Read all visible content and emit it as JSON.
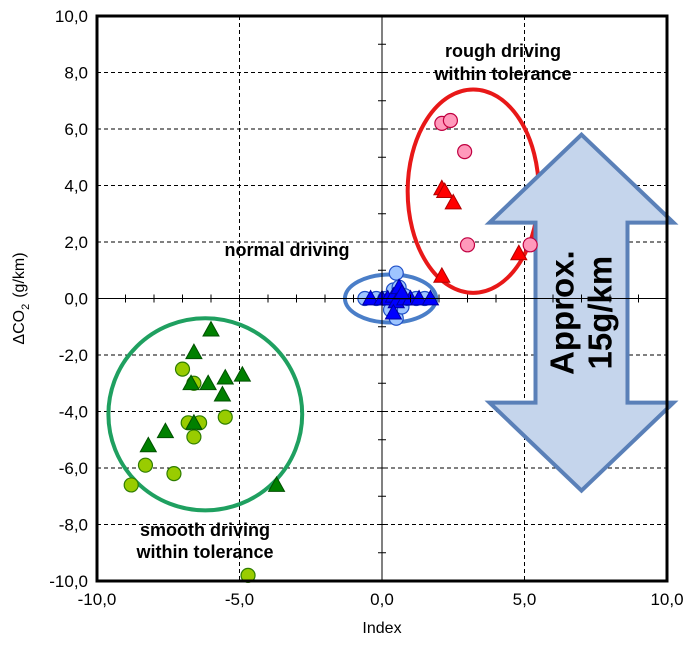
{
  "chart_data": {
    "type": "scatter",
    "title": "",
    "xlabel": "Index",
    "ylabel_main": "ΔCO",
    "ylabel_sub": "2",
    "ylabel_unit": "(g/km)",
    "xlim": [
      -10,
      10
    ],
    "ylim": [
      -10,
      10
    ],
    "x_ticks": [
      "-10,0",
      "-5,0",
      "0,0",
      "5,0",
      "10,0"
    ],
    "y_ticks": [
      "10,0",
      "8,0",
      "6,0",
      "4,0",
      "2,0",
      "0,0",
      "-2,0",
      "-4,0",
      "-6,0",
      "-8,0",
      "-10,0"
    ],
    "grid": true,
    "series": [
      {
        "group": "smooth driving",
        "marker": "circle",
        "fill": "#99cc00",
        "stroke": "#2e7d00",
        "points": [
          [
            -8.8,
            -6.6
          ],
          [
            -8.3,
            -5.9
          ],
          [
            -7.3,
            -6.2
          ],
          [
            -7.0,
            -2.5
          ],
          [
            -6.6,
            -3.0
          ],
          [
            -6.8,
            -4.4
          ],
          [
            -6.6,
            -4.9
          ],
          [
            -6.4,
            -4.4
          ],
          [
            -5.5,
            -4.2
          ],
          [
            -4.7,
            -9.8
          ]
        ]
      },
      {
        "group": "smooth driving",
        "marker": "triangle",
        "fill": "#008000",
        "stroke": "#005000",
        "points": [
          [
            -8.2,
            -5.2
          ],
          [
            -7.6,
            -4.7
          ],
          [
            -6.7,
            -3.0
          ],
          [
            -6.6,
            -1.9
          ],
          [
            -6.0,
            -1.1
          ],
          [
            -6.1,
            -3.0
          ],
          [
            -5.5,
            -2.8
          ],
          [
            -5.6,
            -3.4
          ],
          [
            -4.9,
            -2.7
          ],
          [
            -6.6,
            -4.4
          ],
          [
            -3.7,
            -6.6
          ]
        ]
      },
      {
        "group": "normal driving",
        "marker": "circle",
        "fill": "#9ec5ff",
        "stroke": "#2050c8",
        "points": [
          [
            -0.6,
            0.0
          ],
          [
            -0.2,
            0.0
          ],
          [
            0.1,
            0.0
          ],
          [
            0.3,
            0.0
          ],
          [
            0.5,
            0.9
          ],
          [
            0.4,
            0.3
          ],
          [
            0.6,
            0.4
          ],
          [
            0.5,
            -0.7
          ],
          [
            0.7,
            -0.3
          ],
          [
            0.9,
            0.0
          ],
          [
            1.2,
            0.0
          ],
          [
            1.5,
            0.0
          ],
          [
            0.8,
            0.1
          ],
          [
            0.3,
            -0.4
          ]
        ]
      },
      {
        "group": "normal driving",
        "marker": "triangle",
        "fill": "#0000ff",
        "stroke": "#0000a0",
        "points": [
          [
            -0.4,
            0.0
          ],
          [
            0.0,
            0.0
          ],
          [
            0.2,
            0.0
          ],
          [
            0.4,
            0.1
          ],
          [
            0.6,
            0.4
          ],
          [
            0.5,
            -0.1
          ],
          [
            0.8,
            0.0
          ],
          [
            1.0,
            0.0
          ],
          [
            1.3,
            0.0
          ],
          [
            1.7,
            0.0
          ],
          [
            0.4,
            -0.5
          ],
          [
            0.7,
            0.2
          ]
        ]
      },
      {
        "group": "rough driving",
        "marker": "circle",
        "fill": "#ff99bb",
        "stroke": "#c00040",
        "points": [
          [
            2.1,
            6.2
          ],
          [
            2.4,
            6.3
          ],
          [
            2.9,
            5.2
          ],
          [
            3.0,
            1.9
          ],
          [
            5.2,
            1.9
          ]
        ]
      },
      {
        "group": "rough driving",
        "marker": "triangle",
        "fill": "#ff0000",
        "stroke": "#b00000",
        "points": [
          [
            2.1,
            3.9
          ],
          [
            2.2,
            3.8
          ],
          [
            2.5,
            3.4
          ],
          [
            2.1,
            0.8
          ],
          [
            4.8,
            1.6
          ]
        ]
      }
    ],
    "ellipses": [
      {
        "name": "smooth",
        "cx": -6.2,
        "cy": -4.1,
        "rx": 3.4,
        "ry": 3.4,
        "color": "#1fa060"
      },
      {
        "name": "normal",
        "cx": 0.3,
        "cy": 0.0,
        "rx": 1.6,
        "ry": 0.85,
        "color": "#4a7ec8"
      },
      {
        "name": "rough",
        "cx": 3.2,
        "cy": 3.8,
        "rx": 2.3,
        "ry": 3.6,
        "color": "#e81818"
      }
    ],
    "annotations": {
      "rough": [
        "rough driving",
        "within tolerance"
      ],
      "normal": [
        "normal driving"
      ],
      "smooth": [
        "smooth driving",
        "within tolerance"
      ],
      "arrow": [
        "Approx.",
        "15g/km"
      ]
    },
    "arrow": {
      "x": 7.0,
      "y_top": 5.8,
      "y_bottom": -6.8,
      "fill": "#c5d5ec",
      "stroke": "#5a80b8"
    }
  }
}
